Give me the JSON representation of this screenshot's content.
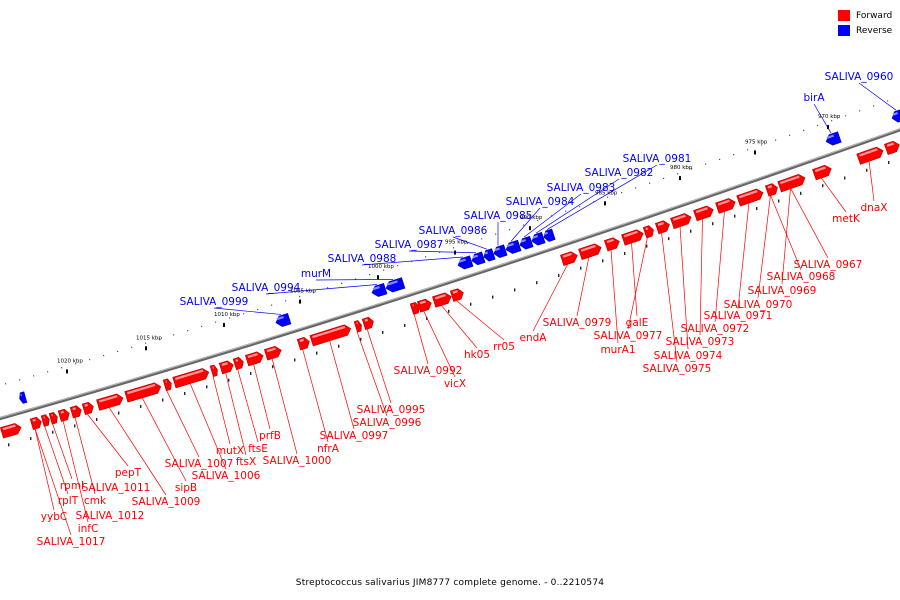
{
  "legend": [
    {
      "label": "Forward",
      "color": "#ff0000"
    },
    {
      "label": "Reverse",
      "color": "#0000ff"
    }
  ],
  "caption": "Streptococcus salivarius JIM8777 complete genome. - 0..2210574",
  "ticks": [
    "970 kbp",
    "975 kbp",
    "980 kbp",
    "985 kbp",
    "990 kbp",
    "995 kbp",
    "1000 kbp",
    "1005 kbp",
    "1010 kbp",
    "1015 kbp",
    "1020 kbp"
  ],
  "reverse_labels": [
    "SALIVA_0960",
    "birA",
    "SALIVA_0981",
    "SALIVA_0982",
    "SALIVA_0983",
    "SALIVA_0984",
    "SALIVA_0985",
    "SALIVA_0986",
    "SALIVA_0987",
    "SALIVA_0988",
    "murM",
    "SALIVA_0994",
    "SALIVA_0999"
  ],
  "forward_labels": [
    "dnaX",
    "metK",
    "SALIVA_0967",
    "SALIVA_0968",
    "SALIVA_0969",
    "SALIVA_0970",
    "SALIVA_0971",
    "SALIVA_0972",
    "SALIVA_0973",
    "SALIVA_0974",
    "SALIVA_0975",
    "galE",
    "SALIVA_0977",
    "murA1",
    "SALIVA_0979",
    "endA",
    "rr05",
    "hk05",
    "vicX",
    "SALIVA_0992",
    "SALIVA_0995",
    "SALIVA_0996",
    "SALIVA_0997",
    "nfrA",
    "SALIVA_1000",
    "prfB",
    "ftsE",
    "ftsX",
    "mutX",
    "SALIVA_1006",
    "SALIVA_1007",
    "sipB",
    "SALIVA_1009",
    "pepT",
    "SALIVA_1011",
    "SALIVA_1012",
    "rpmI",
    "cmk",
    "rplT",
    "infC",
    "yybC",
    "SALIVA_1017"
  ]
}
